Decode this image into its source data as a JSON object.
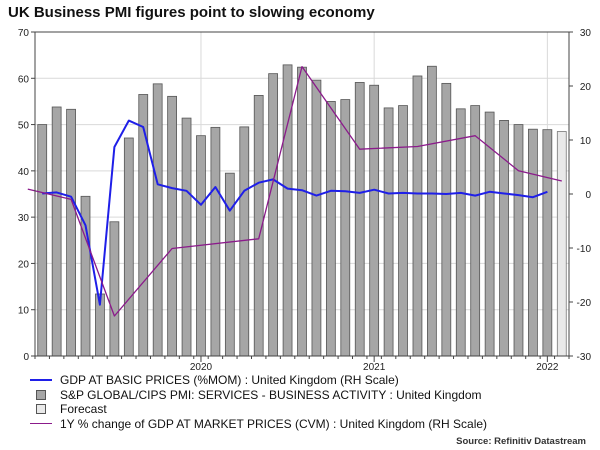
{
  "chart_data": {
    "type": "bar+line",
    "title": "UK Business PMI figures point to slowing economy",
    "source": "Source: Refinitiv Datastream",
    "left_axis": {
      "min": 0,
      "max": 70,
      "ticks": [
        "0",
        "10",
        "20",
        "30",
        "40",
        "50",
        "60",
        "70"
      ]
    },
    "right_axis": {
      "min": -30,
      "max": 30,
      "ticks": [
        "-30",
        "-20",
        "-10",
        "0",
        "10",
        "20",
        "30"
      ]
    },
    "x_labels": [
      {
        "label": "2020",
        "month_index": 11
      },
      {
        "label": "2021",
        "month_index": 23
      },
      {
        "label": "2022",
        "month_index": 35
      }
    ],
    "colors": {
      "gdp_mom": "#1f1fe8",
      "pmi": "#a6a6a6",
      "forecast": "#e9e9e9",
      "gdp_yoy": "#8b1a8b"
    },
    "series": [
      {
        "name": "S&P GLOBAL/CIPS PMI: SERVICES - BUSINESS ACTIVITY : United Kingdom",
        "type": "bar",
        "axis": "left",
        "values": [
          50.0,
          53.8,
          53.3,
          34.5,
          13.4,
          29.0,
          47.1,
          56.5,
          58.8,
          56.1,
          51.4,
          47.6,
          49.4,
          39.5,
          49.5,
          56.3,
          61.0,
          62.9,
          62.4,
          59.6,
          55.0,
          55.4,
          59.1,
          58.5,
          53.6,
          54.1,
          60.5,
          62.6,
          58.9,
          53.4,
          54.1,
          52.7,
          50.9,
          50.0,
          49.0,
          48.9
        ]
      },
      {
        "name": "Forecast",
        "type": "bar",
        "axis": "left",
        "start_index": 36,
        "values": [
          48.5
        ]
      },
      {
        "name": "GDP AT BASIC PRICES (%MOM) : United Kingdom (RH Scale)",
        "type": "line",
        "axis": "right",
        "values": [
          0.1,
          0.3,
          -0.5,
          -5.8,
          -20.5,
          8.7,
          13.6,
          12.4,
          1.8,
          1.1,
          0.6,
          -2.0,
          1.3,
          -3.1,
          0.6,
          2.1,
          2.7,
          1.0,
          0.7,
          -0.3,
          0.6,
          0.5,
          0.2,
          0.8,
          0.1,
          0.2,
          0.1,
          0.1,
          0.0,
          0.2,
          -0.3,
          0.4,
          0.1,
          -0.2,
          -0.6,
          0.4
        ]
      },
      {
        "name": "1Y % change of GDP AT MARKET PRICES (CVM) : United Kingdom (RH Scale)",
        "type": "line",
        "axis": "right",
        "points": [
          [
            -1,
            0.9
          ],
          [
            2,
            -1.0
          ],
          [
            5,
            -22.6
          ],
          [
            9,
            -10.1
          ],
          [
            15,
            -8.3
          ],
          [
            18,
            23.6
          ],
          [
            22,
            8.3
          ],
          [
            26,
            8.8
          ],
          [
            30,
            10.8
          ],
          [
            33,
            4.3
          ],
          [
            36,
            2.4
          ]
        ]
      }
    ]
  },
  "legend": {
    "gdp_mom": "GDP AT BASIC PRICES (%MOM) : United Kingdom (RH Scale)",
    "pmi": "S&P GLOBAL/CIPS PMI: SERVICES - BUSINESS ACTIVITY : United Kingdom",
    "forecast": "Forecast",
    "gdp_yoy": "1Y % change of GDP AT MARKET PRICES (CVM) : United Kingdom (RH Scale)"
  }
}
